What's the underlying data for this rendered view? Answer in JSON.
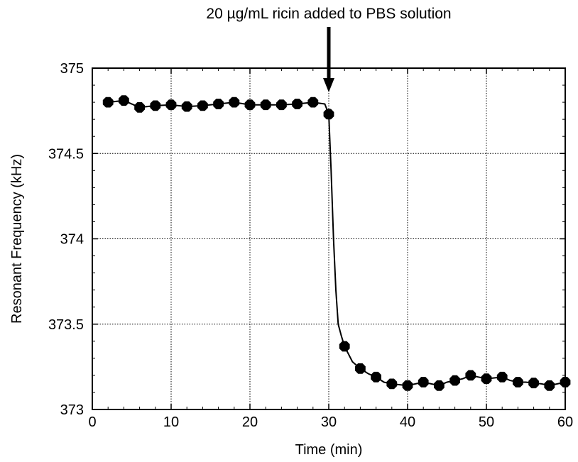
{
  "chart_data": {
    "type": "line",
    "title": "",
    "xlabel": "Time (min)",
    "ylabel": "Resonant Frequency (kHz)",
    "xlim": [
      0,
      60
    ],
    "ylim": [
      373,
      375
    ],
    "xticks": [
      0,
      10,
      20,
      30,
      40,
      50,
      60
    ],
    "yticks": [
      373,
      373.5,
      374,
      374.5,
      375
    ],
    "xtick_labels": [
      "0",
      "10",
      "20",
      "30",
      "40",
      "50",
      "60"
    ],
    "ytick_labels": [
      "373",
      "373.5",
      "374",
      "374.5",
      "375"
    ],
    "grid": true,
    "legend": "none",
    "annotation": {
      "text": "20 µg/mL ricin added to PBS solution",
      "x": 30
    },
    "series": [
      {
        "marker": "circle",
        "color": "#000000",
        "markers": [
          [
            2,
            374.8
          ],
          [
            4,
            374.81
          ],
          [
            6,
            374.77
          ],
          [
            8,
            374.78
          ],
          [
            10,
            374.785
          ],
          [
            12,
            374.775
          ],
          [
            14,
            374.78
          ],
          [
            16,
            374.79
          ],
          [
            18,
            374.8
          ],
          [
            20,
            374.785
          ],
          [
            22,
            374.785
          ],
          [
            24,
            374.785
          ],
          [
            26,
            374.79
          ],
          [
            28,
            374.8
          ],
          [
            30,
            374.73
          ],
          [
            32,
            373.37
          ],
          [
            34,
            373.24
          ],
          [
            36,
            373.19
          ],
          [
            38,
            373.15
          ],
          [
            40,
            373.14
          ],
          [
            42,
            373.16
          ],
          [
            44,
            373.14
          ],
          [
            46,
            373.17
          ],
          [
            48,
            373.2
          ],
          [
            50,
            373.18
          ],
          [
            52,
            373.19
          ],
          [
            54,
            373.16
          ],
          [
            56,
            373.155
          ],
          [
            58,
            373.14
          ],
          [
            60,
            373.16
          ]
        ],
        "line": [
          [
            2,
            374.8
          ],
          [
            4,
            374.81
          ],
          [
            6,
            374.77
          ],
          [
            8,
            374.78
          ],
          [
            10,
            374.785
          ],
          [
            12,
            374.775
          ],
          [
            14,
            374.78
          ],
          [
            16,
            374.79
          ],
          [
            18,
            374.8
          ],
          [
            20,
            374.785
          ],
          [
            22,
            374.785
          ],
          [
            24,
            374.785
          ],
          [
            26,
            374.79
          ],
          [
            28,
            374.8
          ],
          [
            29.5,
            374.79
          ],
          [
            30,
            374.73
          ],
          [
            30.3,
            374.4
          ],
          [
            30.6,
            374.0
          ],
          [
            30.9,
            373.7
          ],
          [
            31.2,
            373.5
          ],
          [
            31.6,
            373.43
          ],
          [
            32,
            373.37
          ],
          [
            33,
            373.28
          ],
          [
            34,
            373.24
          ],
          [
            35,
            373.21
          ],
          [
            36,
            373.19
          ],
          [
            37,
            373.16
          ],
          [
            38,
            373.15
          ],
          [
            39,
            373.145
          ],
          [
            40,
            373.14
          ],
          [
            41,
            373.15
          ],
          [
            42,
            373.16
          ],
          [
            43,
            373.15
          ],
          [
            44,
            373.14
          ],
          [
            45,
            373.16
          ],
          [
            46,
            373.17
          ],
          [
            47,
            373.18
          ],
          [
            48,
            373.2
          ],
          [
            49,
            373.19
          ],
          [
            50,
            373.18
          ],
          [
            51,
            373.185
          ],
          [
            52,
            373.19
          ],
          [
            53,
            373.17
          ],
          [
            54,
            373.16
          ],
          [
            55,
            373.16
          ],
          [
            56,
            373.155
          ],
          [
            57,
            373.15
          ],
          [
            58,
            373.14
          ],
          [
            59,
            373.15
          ],
          [
            60,
            373.16
          ]
        ]
      }
    ]
  }
}
